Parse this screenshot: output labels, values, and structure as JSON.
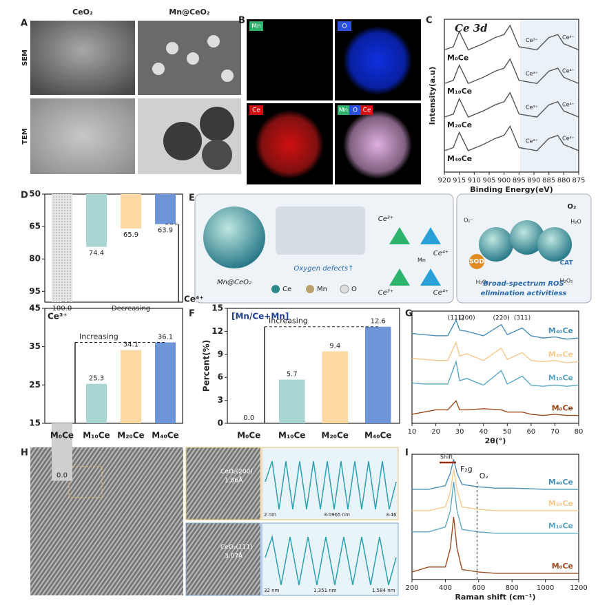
{
  "panel_labels": [
    "A",
    "B",
    "C",
    "D",
    "E",
    "F",
    "G",
    "H",
    "I"
  ],
  "A": {
    "columns": [
      "CeO₂",
      "Mn@CeO₂"
    ],
    "rows": [
      "SEM",
      "TEM"
    ]
  },
  "B": {
    "maps": [
      "Mn",
      "O",
      "Ce"
    ],
    "merged": [
      "Mn",
      "O",
      "Ce"
    ]
  },
  "E": {
    "particle": "Mn@CeO₂",
    "defects": "Oxygen defects↑",
    "ce3": "Ce³⁺",
    "ce4": "Ce⁴⁺",
    "mn": "Mn",
    "legend": [
      "Ce",
      "Mn",
      "O"
    ],
    "sod": "SOD",
    "cat": "CAT",
    "o2": "O₂",
    "h2o": "H₂O",
    "h2o2": "H₂O₂",
    "o2minus": "O₂⁻",
    "caption": [
      "Broad-spectrum ROS",
      "elimination activitiess"
    ]
  },
  "H": {
    "plane1": "CeO₂(200)",
    "d1": "1.86Å",
    "plane2": "CeO₂(111)",
    "d2": "3.07Å",
    "profile1": [
      "2 nm",
      "3.0965 nm",
      "3.46"
    ],
    "profile2": [
      "32 nm",
      "1.351 nm",
      "1.584 nm"
    ]
  },
  "chart_data": [
    {
      "type": "line",
      "title": "Ce 3d",
      "y_label": "Intensity(a.u)",
      "x_label": "Binding Energy(eV)",
      "annotations": [
        "Ce³⁺",
        "Ce⁴⁺"
      ],
      "xlim": [
        920,
        875
      ],
      "xticks": [
        920,
        915,
        910,
        905,
        900,
        895,
        890,
        885,
        880,
        875
      ],
      "ylim": [
        0,
        100
      ],
      "x": [
        920,
        917,
        915,
        912,
        907,
        903,
        900,
        898,
        895,
        889,
        885,
        882,
        880,
        875
      ],
      "series": [
        {
          "name": "M₀Ce",
          "color": "#555555",
          "values": [
            80,
            82,
            92,
            80,
            84,
            88,
            90,
            96,
            82,
            80,
            88,
            90,
            84,
            80
          ]
        },
        {
          "name": "M₁₀Ce",
          "color": "#555555",
          "values": [
            58,
            60,
            70,
            58,
            62,
            66,
            68,
            74,
            60,
            58,
            66,
            68,
            62,
            58
          ]
        },
        {
          "name": "M₂₀Ce",
          "color": "#555555",
          "values": [
            36,
            38,
            48,
            36,
            40,
            44,
            46,
            52,
            38,
            36,
            44,
            46,
            40,
            36
          ]
        },
        {
          "name": "M₄₀Ce",
          "color": "#555555",
          "values": [
            14,
            16,
            26,
            14,
            18,
            22,
            24,
            30,
            16,
            14,
            22,
            24,
            18,
            14
          ]
        }
      ]
    },
    {
      "type": "bar",
      "legend": "Ce⁴⁺",
      "annotation": "Decreasing",
      "inverted": true,
      "values": [
        100.0,
        74.4,
        65.9,
        63.9
      ],
      "value_labels": [
        "100.0",
        "74.4",
        "65.9",
        "63.9"
      ],
      "colors": [
        "#cfcfcf",
        "#a9d6d2",
        "#fcd9a3",
        "#6f95d9"
      ],
      "ylim": [
        50,
        100
      ],
      "yticks": [
        50,
        65,
        80,
        95
      ]
    },
    {
      "type": "bar",
      "legend": "Ce³⁺",
      "annotation": "Increasing",
      "categories": [
        "M₀Ce",
        "M₁₀Ce",
        "M₂₀Ce",
        "M₄₀Ce"
      ],
      "values": [
        0.0,
        25.3,
        34.1,
        36.1
      ],
      "value_labels": [
        "0.0",
        "25.3",
        "34.1",
        "36.1"
      ],
      "colors": [
        "#cfcfcf",
        "#a9d6d2",
        "#fcd9a3",
        "#6f95d9"
      ],
      "ylim": [
        15,
        45
      ],
      "yticks": [
        15,
        25,
        35,
        45
      ]
    },
    {
      "type": "bar",
      "title": "[Mn/Ce+Mn]",
      "y_label": "Percent(%)",
      "annotation": "Increasing",
      "categories": [
        "M₀Ce",
        "M₁₀Ce",
        "M₂₀Ce",
        "M₄₀Ce"
      ],
      "values": [
        0.0,
        5.7,
        9.4,
        12.6
      ],
      "value_labels": [
        "0.0",
        "5.7",
        "9.4",
        "12.6"
      ],
      "colors": [
        "#cfcfcf",
        "#a9d6d2",
        "#fcd9a3",
        "#6f95d9"
      ],
      "ylim": [
        0,
        15
      ],
      "yticks": [
        0,
        3,
        6,
        9,
        12,
        15
      ]
    },
    {
      "type": "line",
      "x_label": "2θ(°)",
      "xlim": [
        10,
        80
      ],
      "xticks": [
        10,
        20,
        30,
        40,
        50,
        60,
        70,
        80
      ],
      "ylim": [
        0,
        100
      ],
      "peak_labels": [
        "(111)",
        "(200)",
        "(220)",
        "(311)"
      ],
      "peak_x": [
        28.5,
        33,
        47.5,
        56.3
      ],
      "x": [
        10,
        15,
        20,
        25,
        28.5,
        30,
        33,
        40,
        47.5,
        50,
        56.3,
        60,
        65,
        70,
        75,
        80
      ],
      "series": [
        {
          "name": "M₄₀Ce",
          "color": "#4a90b8",
          "values": [
            80,
            79,
            78,
            78,
            92,
            83,
            82,
            78,
            88,
            79,
            85,
            78,
            76,
            77,
            75,
            76
          ]
        },
        {
          "name": "M₂₀Ce",
          "color": "#f5c98a",
          "values": [
            58,
            57,
            56,
            56,
            72,
            60,
            62,
            56,
            67,
            57,
            63,
            56,
            55,
            56,
            54,
            55
          ]
        },
        {
          "name": "M₁₀Ce",
          "color": "#5aa9c4",
          "values": [
            36,
            35,
            35,
            35,
            55,
            38,
            40,
            34,
            47,
            35,
            42,
            34,
            33,
            34,
            33,
            34
          ]
        },
        {
          "name": "M₀Ce",
          "color": "#9c4a1e",
          "values": [
            8,
            10,
            12,
            12,
            20,
            12,
            12,
            13,
            12,
            10,
            10,
            8,
            7,
            8,
            7,
            7
          ]
        }
      ]
    },
    {
      "type": "line",
      "x_label": "Raman shift (cm⁻¹)",
      "xlim": [
        200,
        1200
      ],
      "xticks": [
        200,
        400,
        600,
        800,
        1000,
        1200
      ],
      "ylim": [
        0,
        100
      ],
      "annotations": [
        "Shift",
        "F₂g",
        "Oᵥ"
      ],
      "ov_x": 590,
      "x": [
        200,
        300,
        400,
        430,
        450,
        470,
        500,
        600,
        700,
        800,
        1000,
        1200
      ],
      "series": [
        {
          "name": "M₄₀Ce",
          "color": "#4a90b8",
          "values": [
            72,
            72,
            75,
            85,
            96,
            85,
            76,
            74,
            73,
            73,
            72,
            72
          ]
        },
        {
          "name": "M₂₀Ce",
          "color": "#f5c98a",
          "values": [
            55,
            55,
            58,
            70,
            88,
            72,
            58,
            56,
            55,
            55,
            55,
            55
          ]
        },
        {
          "name": "M₁₀Ce",
          "color": "#5aa9c4",
          "values": [
            38,
            38,
            42,
            55,
            78,
            55,
            40,
            38,
            37,
            37,
            37,
            37
          ]
        },
        {
          "name": "M₀Ce",
          "color": "#9c4a1e",
          "values": [
            6,
            10,
            10,
            25,
            50,
            25,
            8,
            6,
            5,
            5,
            5,
            5
          ]
        }
      ]
    }
  ]
}
